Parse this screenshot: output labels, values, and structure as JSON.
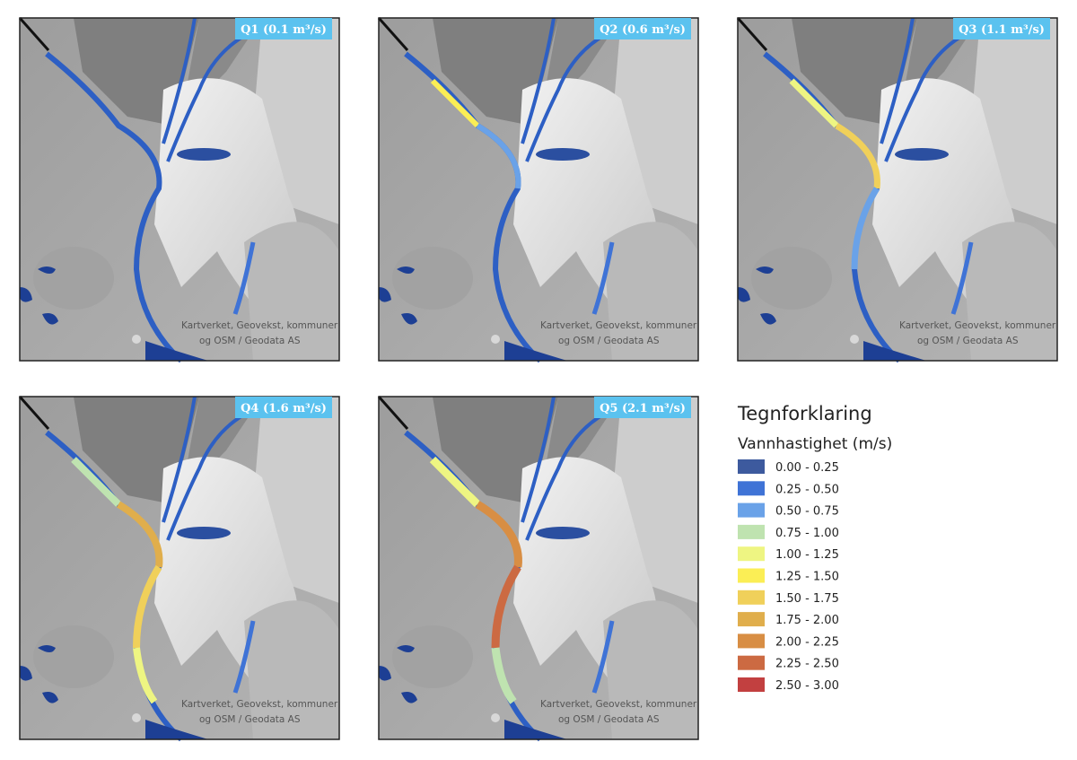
{
  "panels": [
    {
      "label": "Q1 (0.1 m³/s)"
    },
    {
      "label": "Q2 (0.6 m³/s)"
    },
    {
      "label": "Q3 (1.1 m³/s)"
    },
    {
      "label": "Q4 (1.6 m³/s)"
    },
    {
      "label": "Q5 (2.1 m³/s)"
    }
  ],
  "attribution": {
    "line1": "Kartverket, Geovekst, kommuner",
    "line2": "og OSM / Geodata AS"
  },
  "legend": {
    "title": "Tegnforklaring",
    "subtitle": "Vannhastighet (m/s)",
    "items": [
      {
        "label": "0.00 - 0.25",
        "color": "#3d5a9e"
      },
      {
        "label": "0.25 - 0.50",
        "color": "#3f73d6"
      },
      {
        "label": "0.50 - 0.75",
        "color": "#6aa2e8"
      },
      {
        "label": "0.75 - 1.00",
        "color": "#bfe3b0"
      },
      {
        "label": "1.00 - 1.25",
        "color": "#eef582"
      },
      {
        "label": "1.25 - 1.50",
        "color": "#fbee55"
      },
      {
        "label": "1.50 - 1.75",
        "color": "#f0d05a"
      },
      {
        "label": "1.75 - 2.00",
        "color": "#e0ae4c"
      },
      {
        "label": "2.00 - 2.25",
        "color": "#d88e44"
      },
      {
        "label": "2.25 - 2.50",
        "color": "#cc6a42"
      },
      {
        "label": "2.50 - 3.00",
        "color": "#c24040"
      }
    ]
  }
}
